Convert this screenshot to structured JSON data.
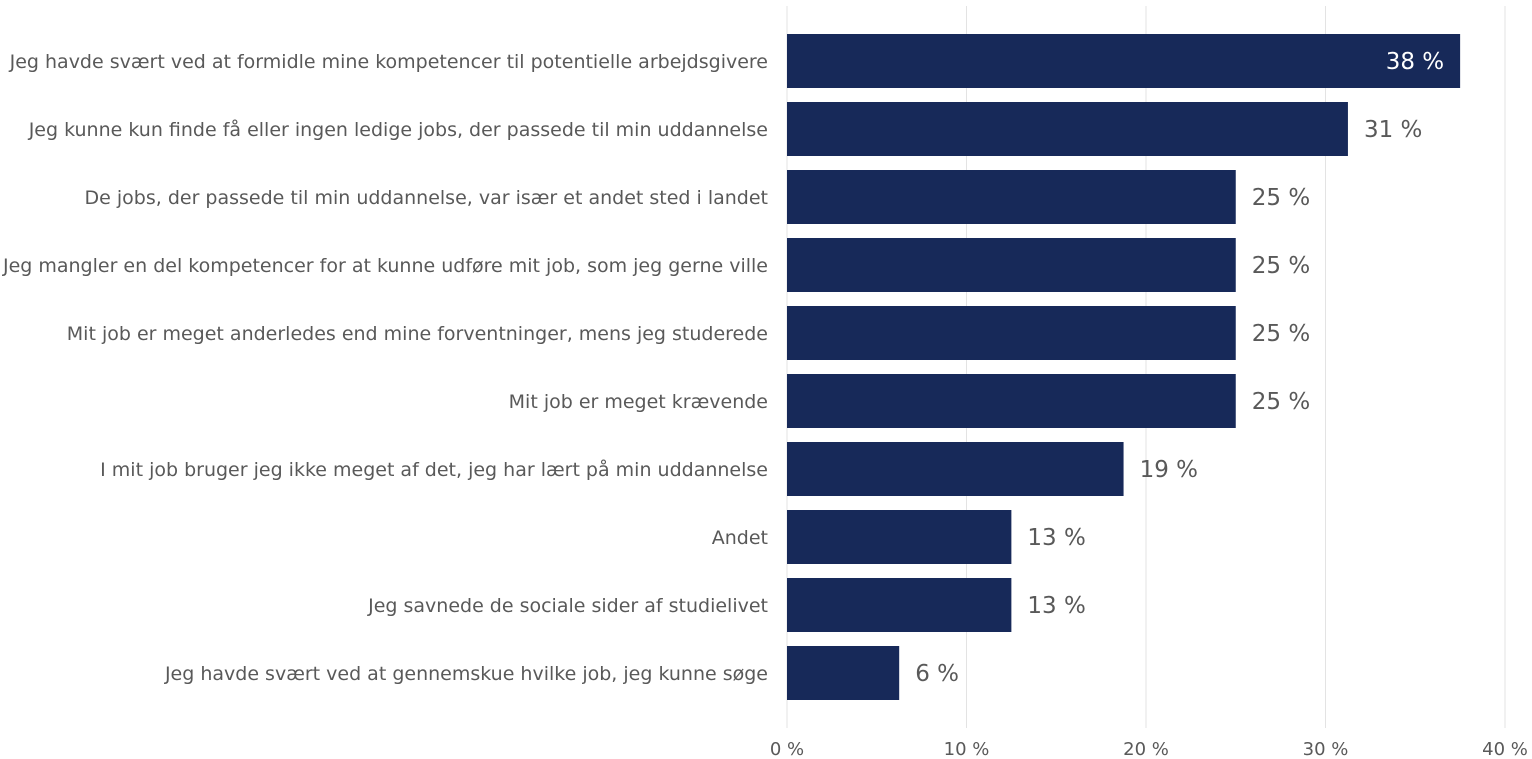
{
  "chart_data": {
    "type": "bar",
    "orientation": "horizontal",
    "categories": [
      "Jeg havde svært ved at formidle mine kompetencer til potentielle arbejdsgivere",
      "Jeg kunne kun finde få eller ingen ledige jobs, der passede til min uddannelse",
      "De jobs, der passede til min uddannelse, var især et andet sted i landet",
      "Jeg mangler en del kompetencer for at kunne udføre mit job, som jeg gerne ville",
      "Mit job er meget anderledes end mine forventninger, mens jeg studerede",
      "Mit job er meget krævende",
      "I mit job bruger jeg ikke meget af det, jeg har lært på min uddannelse",
      "Andet",
      "Jeg savnede de sociale sider af studielivet",
      "Jeg havde svært ved at gennemskue hvilke job, jeg kunne søge"
    ],
    "values": [
      37.5,
      31.25,
      25,
      25,
      25,
      25,
      18.75,
      12.5,
      12.5,
      6.25
    ],
    "value_labels": [
      "38 %",
      "31 %",
      "25 %",
      "25 %",
      "25 %",
      "25 %",
      "19 %",
      "13 %",
      "13 %",
      "6 %"
    ],
    "xlim": [
      0,
      40
    ],
    "xticks": [
      0,
      10,
      20,
      30,
      40
    ],
    "xtick_labels": [
      "0 %",
      "10 %",
      "20 %",
      "30 %",
      "40 %"
    ],
    "title": "",
    "xlabel": "",
    "ylabel": "",
    "grid": true,
    "legend": "none",
    "colors": {
      "bar": "#172959",
      "label": "#595959",
      "inside_label": "#ffffff",
      "grid": "#e3e3e3"
    }
  }
}
